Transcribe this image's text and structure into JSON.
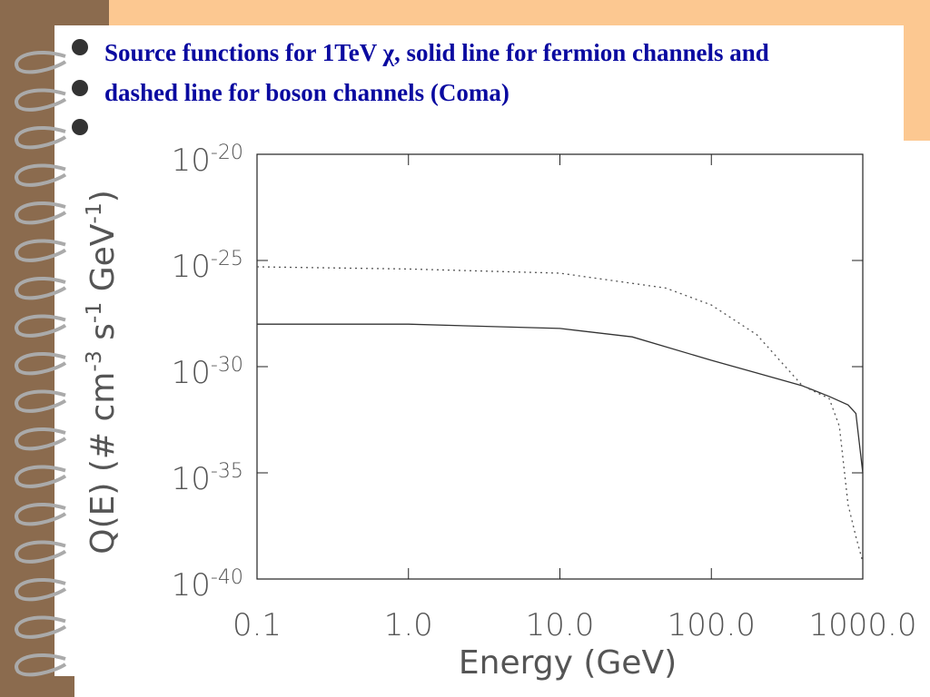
{
  "chart_data": {
    "type": "line",
    "title": "Source functions for 1TeV χ, solid line for fermion channels and dashed line for boson channels (Coma)",
    "x_label": "Energy (GeV)",
    "y_label": "Q(E) (# cm^-3 s^-1 GeV^-1)",
    "x_scale": "log",
    "y_scale": "log",
    "xlim": [
      0.1,
      1000
    ],
    "ylim": [
      1e-40,
      1e-20
    ],
    "xticks": [
      0.1,
      {
        "value": 1,
        "label": "1.0"
      },
      {
        "value": 10,
        "label": "10.0"
      },
      {
        "value": 100,
        "label": "100.0"
      },
      {
        "value": 1000,
        "label": "1000.0"
      }
    ],
    "yticks": [
      {
        "value": 1e-40,
        "label": "10^-40"
      },
      {
        "value": 1e-35,
        "label": "10^-35"
      },
      {
        "value": 1e-30,
        "label": "10^-30"
      },
      {
        "value": 1e-25,
        "label": "10^-25"
      },
      {
        "value": 1e-20,
        "label": "10^-20"
      }
    ],
    "series": [
      {
        "color": "#333333",
        "dash": "solid",
        "x": [
          0.1,
          1,
          10,
          30,
          100,
          200,
          400,
          600,
          800,
          900,
          1000
        ],
        "values": [
          1e-28,
          1e-28,
          6.31e-29,
          2.51e-29,
          2e-30,
          5.01e-31,
          1.26e-31,
          3.98e-32,
          1.58e-32,
          6.31e-33,
          1e-35
        ]
      },
      {
        "color": "#555555",
        "dash": "dotted",
        "x": [
          0.1,
          1,
          10,
          50,
          100,
          200,
          400,
          600,
          700,
          800,
          900,
          1000
        ],
        "values": [
          5.01e-26,
          3.98e-26,
          2.51e-26,
          5.01e-27,
          7.94e-28,
          3.16e-29,
          1.26e-31,
          3.16e-32,
          1.58e-33,
          3.16e-37,
          1e-38,
          6.31e-40
        ]
      }
    ]
  }
}
